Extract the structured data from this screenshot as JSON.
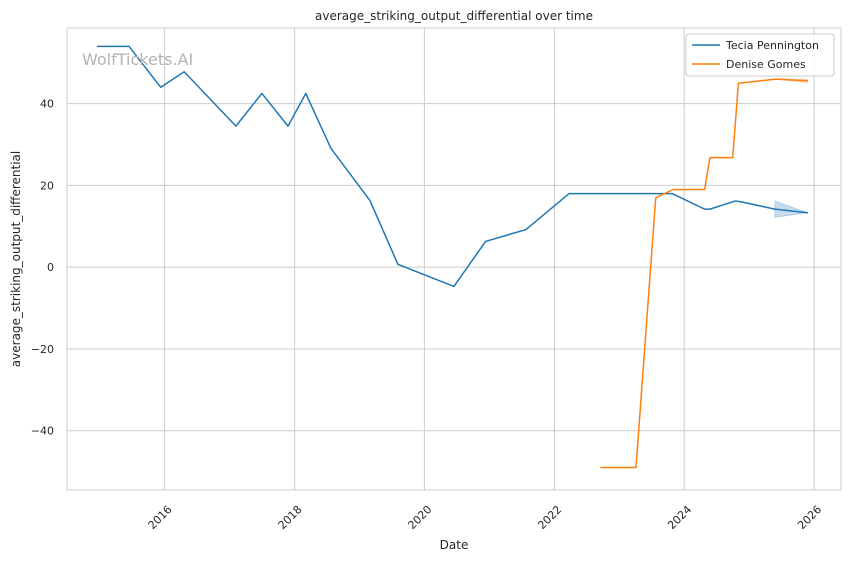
{
  "chart_data": {
    "type": "line",
    "title": "average_striking_output_differential over time",
    "xlabel": "Date",
    "ylabel": "average_striking_output_differential",
    "watermark": "WolfTickets.AI",
    "xlim": [
      "2014-07-01",
      "2026-06-01"
    ],
    "ylim": [
      -54.5,
      58.5
    ],
    "x_ticks": [
      {
        "date": "2016-01-01",
        "label": "2016"
      },
      {
        "date": "2018-01-01",
        "label": "2018"
      },
      {
        "date": "2020-01-01",
        "label": "2020"
      },
      {
        "date": "2022-01-01",
        "label": "2022"
      },
      {
        "date": "2024-01-01",
        "label": "2024"
      },
      {
        "date": "2026-01-01",
        "label": "2026"
      }
    ],
    "y_ticks": [
      {
        "value": -40,
        "label": "−40"
      },
      {
        "value": -20,
        "label": "−20"
      },
      {
        "value": 0,
        "label": "0"
      },
      {
        "value": 20,
        "label": "20"
      },
      {
        "value": 40,
        "label": "40"
      }
    ],
    "grid": true,
    "legend_position": "top-right",
    "series": [
      {
        "name": "Tecia Pennington",
        "color": "#1f77b4",
        "points": [
          {
            "x": "2014-12-20",
            "y": 54
          },
          {
            "x": "2015-06-15",
            "y": 54
          },
          {
            "x": "2015-12-10",
            "y": 44
          },
          {
            "x": "2016-04-20",
            "y": 47.8
          },
          {
            "x": "2017-02-05",
            "y": 34.5
          },
          {
            "x": "2017-07-01",
            "y": 42.5
          },
          {
            "x": "2017-11-25",
            "y": 34.5
          },
          {
            "x": "2018-03-05",
            "y": 42.5
          },
          {
            "x": "2018-07-25",
            "y": 29
          },
          {
            "x": "2019-03-01",
            "y": 16.3
          },
          {
            "x": "2019-08-05",
            "y": 0.7
          },
          {
            "x": "2020-06-15",
            "y": -4.7
          },
          {
            "x": "2020-12-10",
            "y": 6.3
          },
          {
            "x": "2021-07-25",
            "y": 9.2
          },
          {
            "x": "2022-03-25",
            "y": 18
          },
          {
            "x": "2023-10-25",
            "y": 18
          },
          {
            "x": "2024-04-25",
            "y": 14.2
          },
          {
            "x": "2024-05-25",
            "y": 14.2
          },
          {
            "x": "2024-10-15",
            "y": 16.2
          },
          {
            "x": "2024-11-15",
            "y": 16
          },
          {
            "x": "2025-05-25",
            "y": 14.2
          },
          {
            "x": "2025-11-25",
            "y": 13.3
          }
        ],
        "band": [
          {
            "x": "2025-05-25",
            "lo": 12.2,
            "hi": 16.2
          },
          {
            "x": "2025-11-25",
            "lo": 13.3,
            "hi": 13.3
          }
        ]
      },
      {
        "name": "Denise Gomes",
        "color": "#ff7f0e",
        "points": [
          {
            "x": "2022-09-20",
            "y": -49
          },
          {
            "x": "2023-04-05",
            "y": -49
          },
          {
            "x": "2023-07-25",
            "y": 17
          },
          {
            "x": "2023-11-01",
            "y": 19
          },
          {
            "x": "2024-04-25",
            "y": 19
          },
          {
            "x": "2024-05-25",
            "y": 26.8
          },
          {
            "x": "2024-09-30",
            "y": 26.8
          },
          {
            "x": "2024-11-01",
            "y": 45
          },
          {
            "x": "2025-06-01",
            "y": 46
          },
          {
            "x": "2025-11-25",
            "y": 45.6
          }
        ],
        "band": [
          {
            "x": "2025-06-01",
            "lo": 46,
            "hi": 46
          },
          {
            "x": "2025-11-25",
            "lo": 45.1,
            "hi": 45.9
          }
        ]
      }
    ]
  }
}
